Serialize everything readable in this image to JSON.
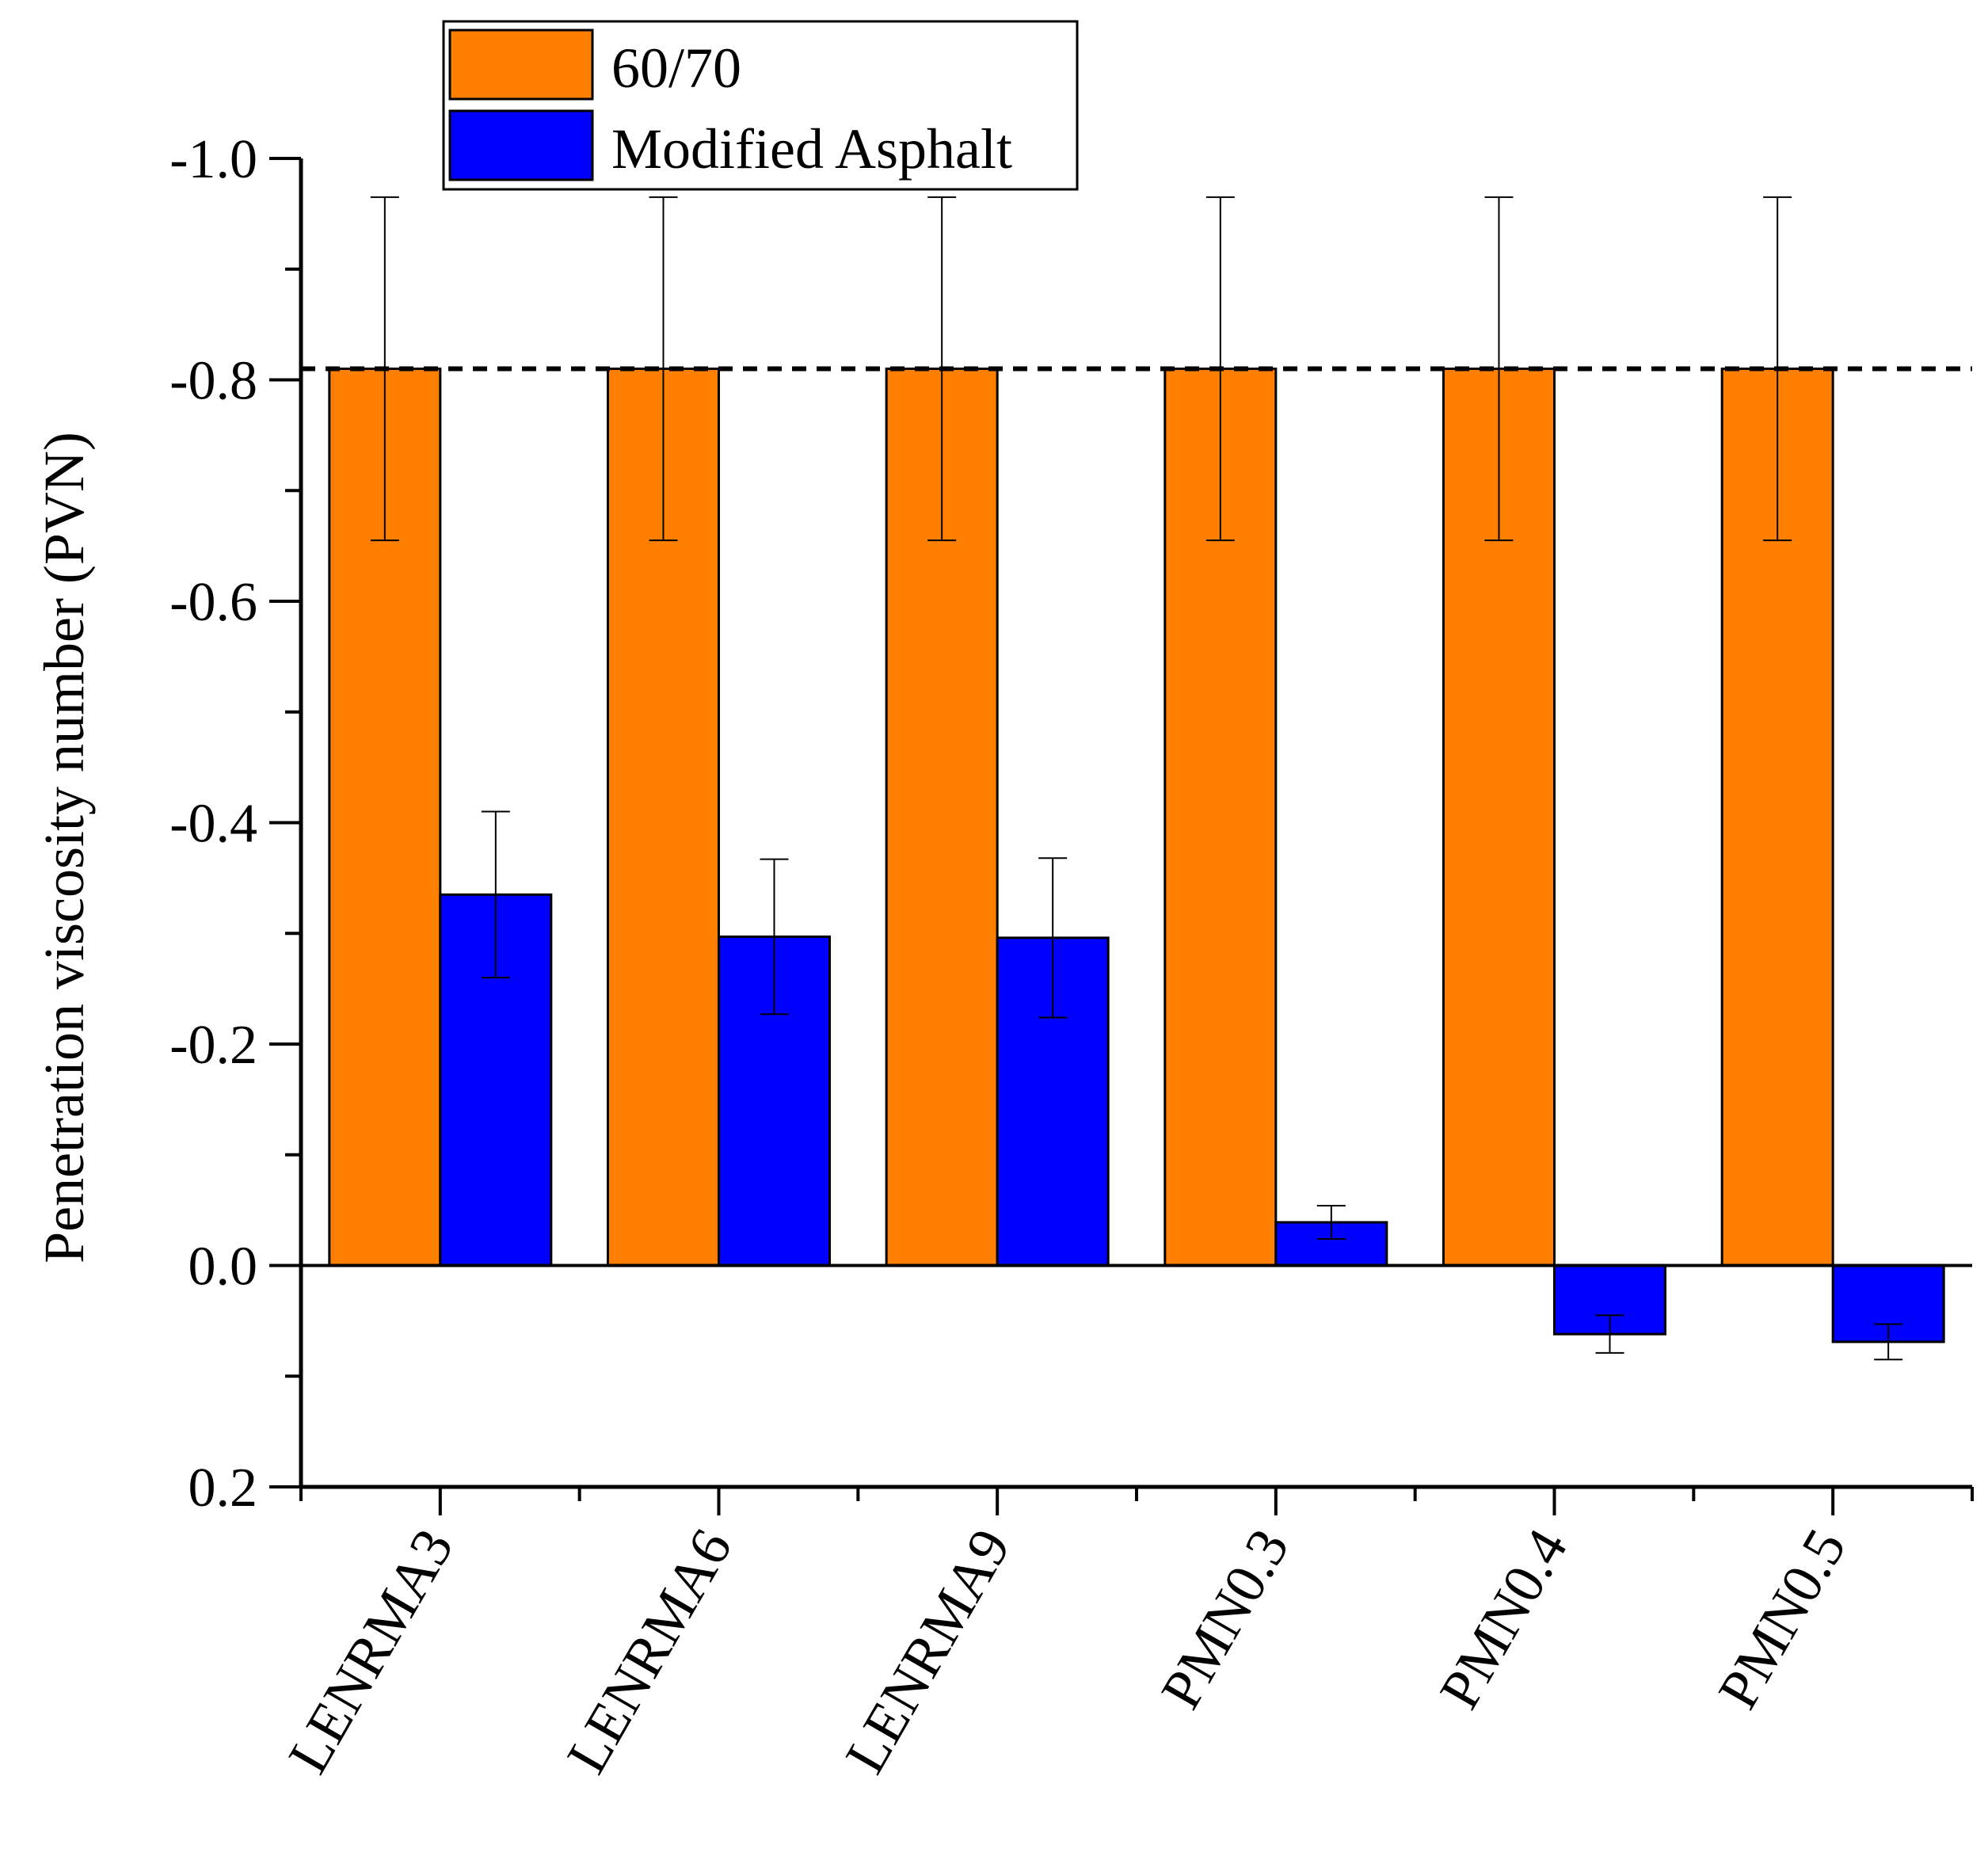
{
  "chart_data": {
    "type": "bar",
    "title": "",
    "xlabel": "",
    "ylabel": "Penetration viscosity number (PVN)",
    "y_axis_inverted": true,
    "ylim": [
      0.2,
      -1.0
    ],
    "yticks": [
      0.2,
      0.0,
      -0.2,
      -0.4,
      -0.6,
      -0.8,
      -1.0
    ],
    "ytick_labels": [
      "0.2",
      "0.0",
      "-0.2",
      "-0.4",
      "-0.6",
      "-0.8",
      "-1.0"
    ],
    "categories": [
      "LENRMA3",
      "LENRMA6",
      "LENRMA9",
      "PMN0.3",
      "PMN0.4",
      "PMN0.5"
    ],
    "series": [
      {
        "name": "60/70",
        "color": "#ff7f00",
        "values": [
          -0.81,
          -0.81,
          -0.81,
          -0.81,
          -0.81,
          -0.81
        ],
        "errors": [
          0.155,
          0.155,
          0.155,
          0.155,
          0.155,
          0.155
        ]
      },
      {
        "name": "Modified Asphalt",
        "color": "#0000ff",
        "values": [
          -0.335,
          -0.297,
          -0.296,
          -0.039,
          0.062,
          0.069
        ],
        "errors": [
          0.075,
          0.07,
          0.072,
          0.015,
          0.017,
          0.016
        ]
      }
    ],
    "reference_line": {
      "value": -0.81,
      "style": "dashed"
    },
    "legend": {
      "position": "top-left",
      "entries": [
        "60/70",
        "Modified Asphalt"
      ]
    },
    "grid": false
  }
}
